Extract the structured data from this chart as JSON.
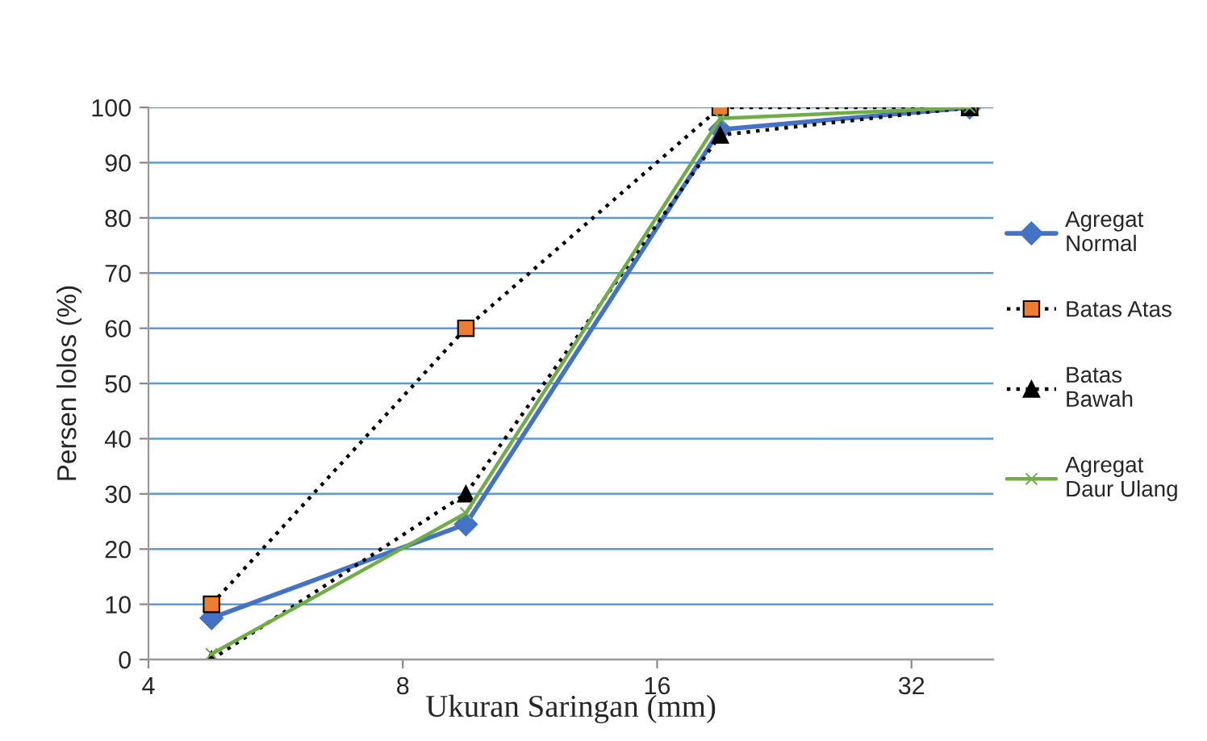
{
  "chart_data": {
    "type": "line",
    "xlabel": "Ukuran Saringan (mm)",
    "ylabel": "Persen lolos (%)",
    "x": [
      4.75,
      9.5,
      19,
      37.5
    ],
    "series": [
      {
        "name": "Agregat\nNormal",
        "color": "#4472c4",
        "marker": "diamond",
        "line_style": "solid",
        "values": [
          7.5,
          24.5,
          96,
          100
        ]
      },
      {
        "name": "Batas Atas",
        "color": "#000000",
        "marker": "square",
        "line_style": "dotted",
        "values": [
          10,
          60,
          100,
          100
        ]
      },
      {
        "name": "Batas\nBawah",
        "color": "#000000",
        "marker": "triangle",
        "line_style": "dotted",
        "values": [
          0,
          30,
          95,
          100
        ]
      },
      {
        "name": "Agregat\nDaur Ulang",
        "color": "#70ad47",
        "marker": "cross",
        "line_style": "solid",
        "values": [
          1,
          26.5,
          98,
          100
        ]
      }
    ],
    "log": "x",
    "xlim": [
      4,
      40
    ],
    "xticks": [
      4,
      8,
      16,
      32
    ],
    "ylim": [
      0,
      100
    ],
    "yticks": [
      0,
      10,
      20,
      30,
      40,
      50,
      60,
      70,
      80,
      90,
      100
    ],
    "grid": "y",
    "legend": "right"
  }
}
